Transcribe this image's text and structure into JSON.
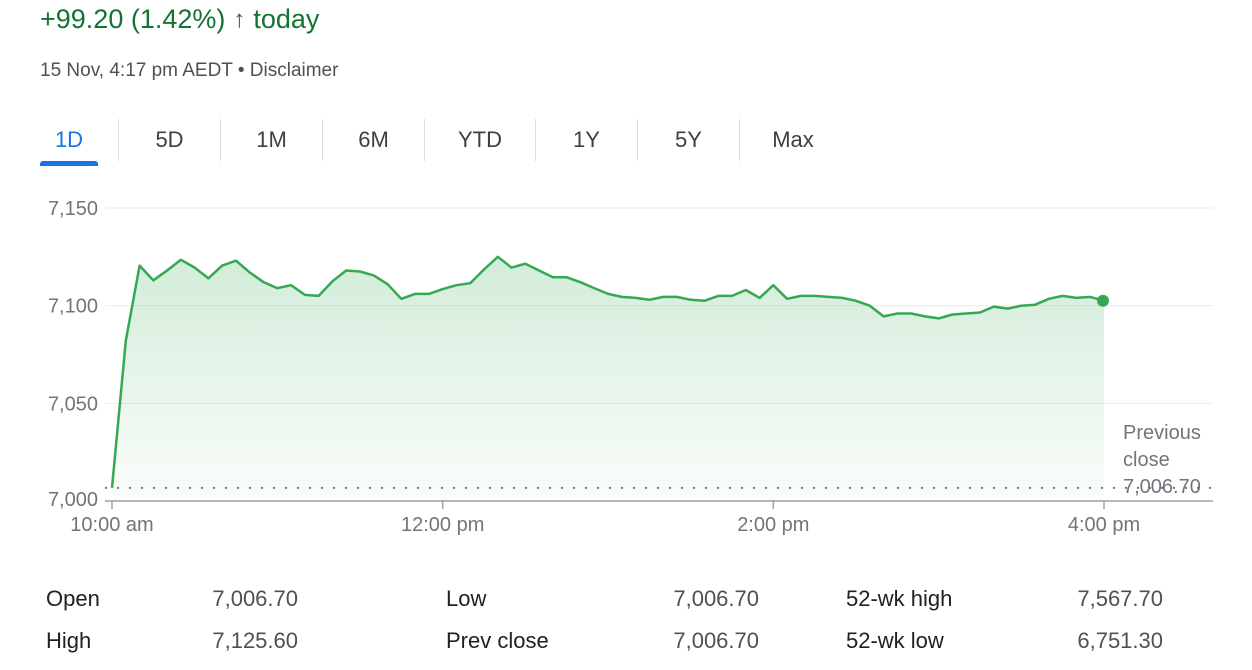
{
  "header": {
    "change_text": "+99.20 (1.42%)",
    "arrow_icon": "arrow-up-icon",
    "period": "today",
    "timestamp": "15 Nov, 4:17 pm AEDT",
    "separator": "•",
    "disclaimer": "Disclaimer"
  },
  "tabs": [
    {
      "label": "1D",
      "active": true
    },
    {
      "label": "5D",
      "active": false
    },
    {
      "label": "1M",
      "active": false
    },
    {
      "label": "6M",
      "active": false
    },
    {
      "label": "YTD",
      "active": false
    },
    {
      "label": "1Y",
      "active": false
    },
    {
      "label": "5Y",
      "active": false
    },
    {
      "label": "Max",
      "active": false
    }
  ],
  "colors": {
    "line": "#34a853",
    "positive_text": "#137333",
    "active_tab": "#1a73e8",
    "grid": "#ebebeb"
  },
  "chart_data": {
    "type": "line",
    "title": "",
    "xlabel": "",
    "ylabel": "",
    "ylim": [
      7000,
      7150
    ],
    "yticks": [
      7000,
      7050,
      7100,
      7150
    ],
    "ytick_labels": [
      "7,000",
      "7,050",
      "7,100",
      "7,150"
    ],
    "xlim": [
      "10:00",
      "16:00"
    ],
    "xticks": [
      "10:00",
      "12:00",
      "14:00",
      "16:00"
    ],
    "xtick_labels": [
      "10:00 am",
      "12:00 pm",
      "2:00 pm",
      "4:00 pm"
    ],
    "grid": true,
    "previous_close": {
      "value": 7006.7,
      "label_line1": "Previous",
      "label_line2": "close",
      "value_label": "7,006.70"
    },
    "series": [
      {
        "x": [
          "10:00",
          "10:05",
          "10:10",
          "10:15",
          "10:20",
          "10:25",
          "10:30",
          "10:35",
          "10:40",
          "10:45",
          "10:50",
          "10:55",
          "11:00",
          "11:05",
          "11:10",
          "11:15",
          "11:20",
          "11:25",
          "11:30",
          "11:35",
          "11:40",
          "11:45",
          "11:50",
          "11:55",
          "12:00",
          "12:05",
          "12:10",
          "12:15",
          "12:20",
          "12:25",
          "12:30",
          "12:35",
          "12:40",
          "12:45",
          "12:50",
          "12:55",
          "13:00",
          "13:05",
          "13:10",
          "13:15",
          "13:20",
          "13:25",
          "13:30",
          "13:35",
          "13:40",
          "13:45",
          "13:50",
          "13:55",
          "14:00",
          "14:05",
          "14:10",
          "14:15",
          "14:20",
          "14:25",
          "14:30",
          "14:35",
          "14:40",
          "14:45",
          "14:50",
          "14:55",
          "15:00",
          "15:05",
          "15:10",
          "15:15",
          "15:20",
          "15:25",
          "15:30",
          "15:35",
          "15:40",
          "15:45",
          "15:50",
          "15:55",
          "16:00"
        ],
        "values": [
          7006.7,
          7082,
          7120.5,
          7113,
          7118,
          7123.5,
          7119.5,
          7114,
          7120.5,
          7123,
          7117,
          7112,
          7109,
          7110.5,
          7105.5,
          7105,
          7112.5,
          7118,
          7117.5,
          7115.5,
          7111,
          7103.5,
          7106,
          7106,
          7108.5,
          7110.5,
          7111.5,
          7118.5,
          7125,
          7119.5,
          7121.5,
          7118,
          7114.5,
          7114.5,
          7112,
          7109,
          7106,
          7104.5,
          7104,
          7103,
          7104.5,
          7104.5,
          7103,
          7102.5,
          7105,
          7105,
          7108,
          7104,
          7110.5,
          7103.5,
          7105,
          7105,
          7104.5,
          7104,
          7102.5,
          7100,
          7094.5,
          7096,
          7096,
          7094.5,
          7093.5,
          7095.5,
          7096,
          7096.5,
          7099.5,
          7098.5,
          7100,
          7100.5,
          7103.5,
          7105,
          7104,
          7104.5,
          7102.5
        ]
      }
    ]
  },
  "stats": [
    {
      "label": "Open",
      "value": "7,006.70"
    },
    {
      "label": "High",
      "value": "7,125.60"
    },
    {
      "label": "Low",
      "value": "7,006.70"
    },
    {
      "label": "Prev close",
      "value": "7,006.70"
    },
    {
      "label": "52-wk high",
      "value": "7,567.70"
    },
    {
      "label": "52-wk low",
      "value": "6,751.30"
    }
  ]
}
